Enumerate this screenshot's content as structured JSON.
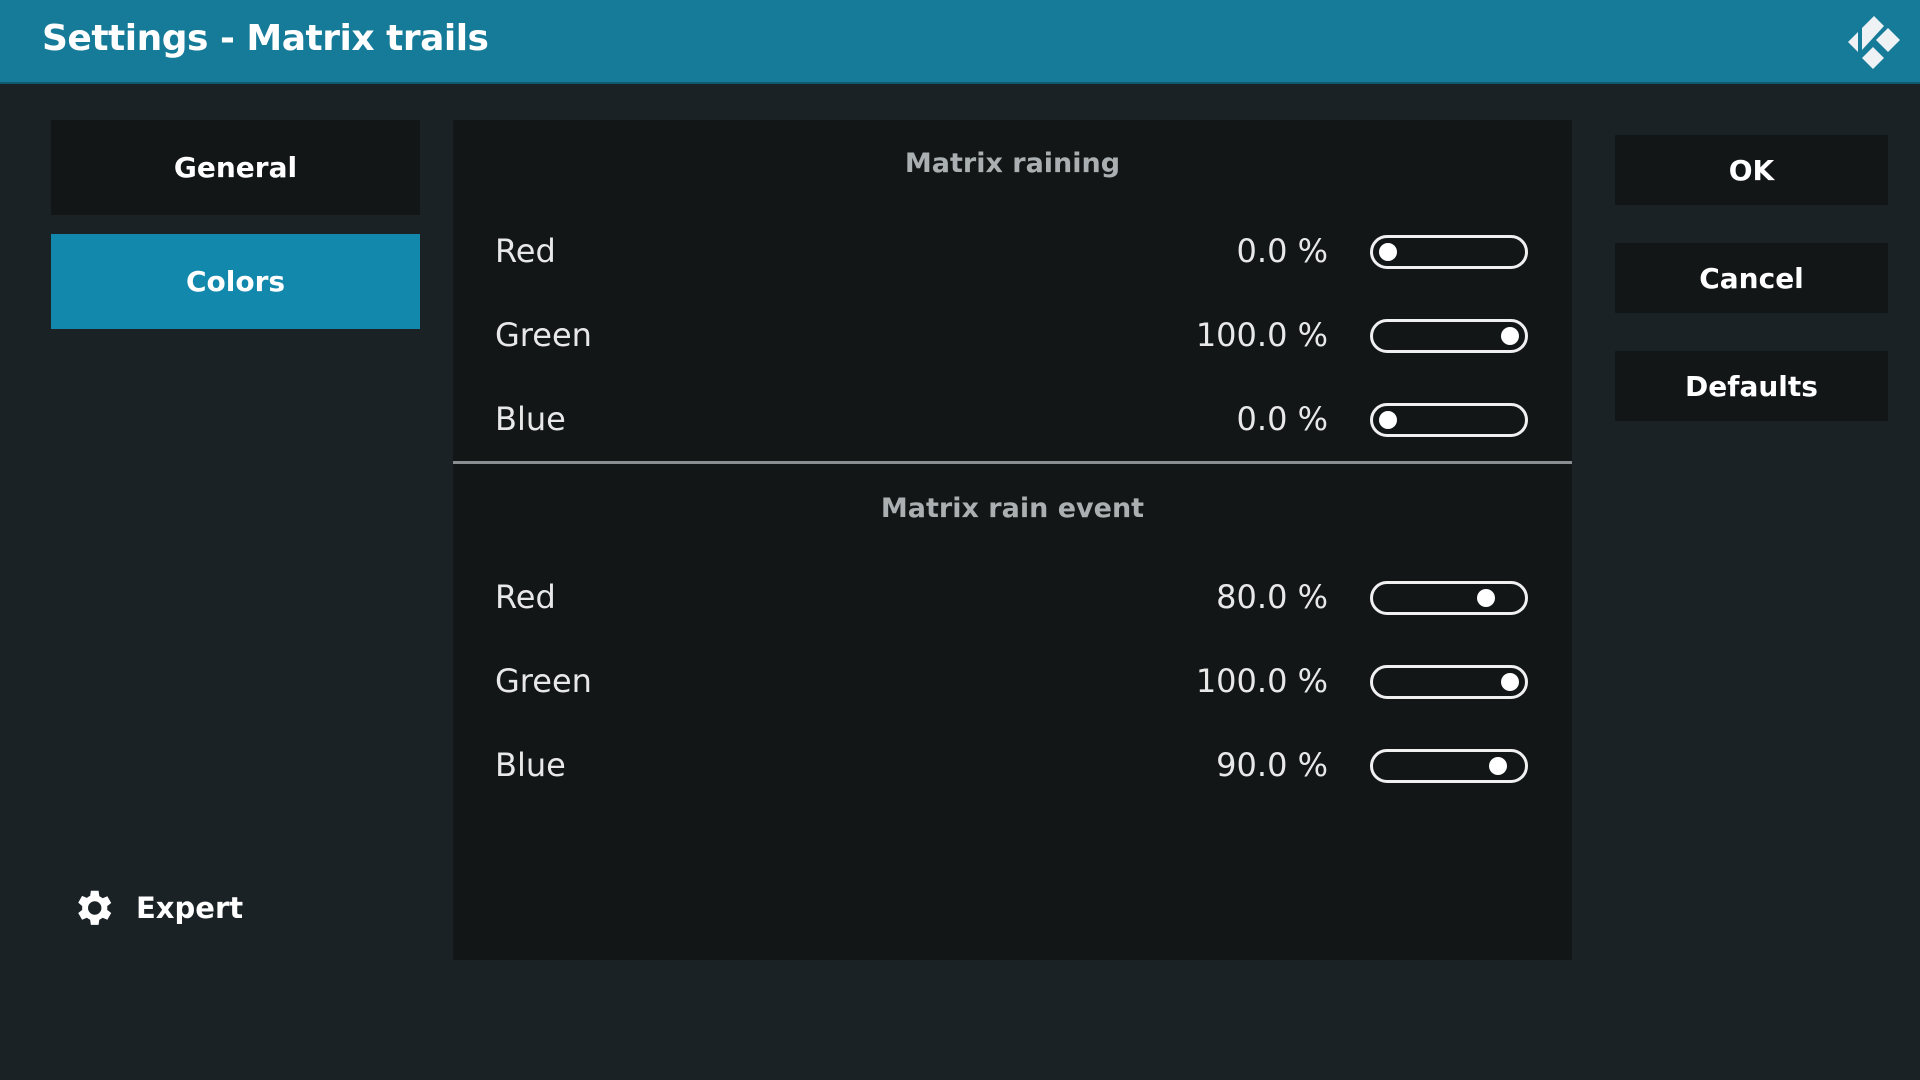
{
  "header": {
    "title": "Settings - Matrix trails",
    "logo": "kodi-logo"
  },
  "categories": [
    {
      "label": "General",
      "active": false
    },
    {
      "label": "Colors",
      "active": true
    }
  ],
  "sections": [
    {
      "title": "Matrix raining",
      "rows": [
        {
          "label": "Red",
          "value": "0.0 %",
          "fraction": 0.0
        },
        {
          "label": "Green",
          "value": "100.0 %",
          "fraction": 1.0
        },
        {
          "label": "Blue",
          "value": "0.0 %",
          "fraction": 0.0
        }
      ]
    },
    {
      "title": "Matrix rain event",
      "rows": [
        {
          "label": "Red",
          "value": "80.0 %",
          "fraction": 0.8
        },
        {
          "label": "Green",
          "value": "100.0 %",
          "fraction": 1.0
        },
        {
          "label": "Blue",
          "value": "90.0 %",
          "fraction": 0.9
        }
      ]
    }
  ],
  "buttons": {
    "ok": "OK",
    "cancel": "Cancel",
    "defaults": "Defaults"
  },
  "expert": {
    "label": "Expert",
    "icon": "gear-icon"
  },
  "colors": {
    "header": "#157b99",
    "active": "#1288ac"
  }
}
